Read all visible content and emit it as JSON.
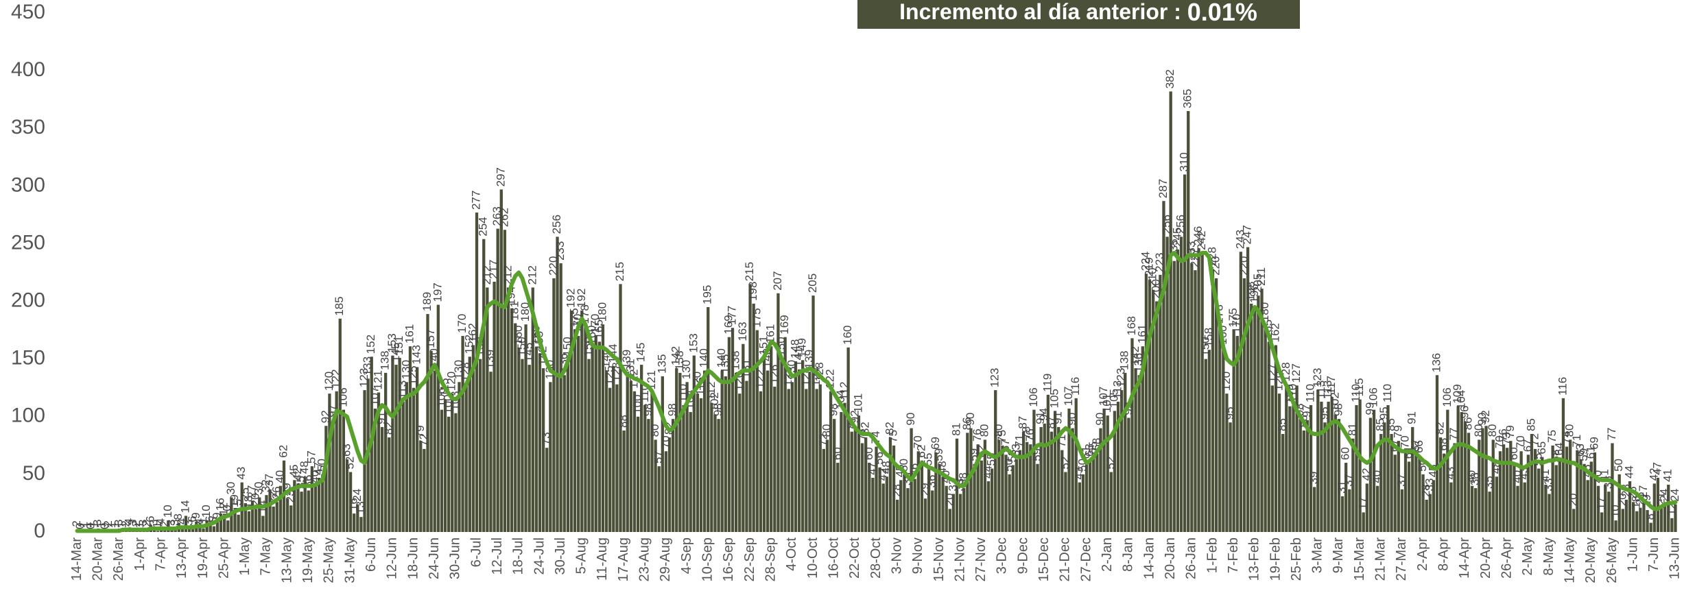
{
  "chart_data": {
    "type": "bar",
    "annotation": {
      "label": "Incremento al día anterior :",
      "value": "0.01%"
    },
    "ylim": [
      0,
      450
    ],
    "yticks": [
      0,
      50,
      100,
      150,
      200,
      250,
      300,
      350,
      400,
      450
    ],
    "grid": false,
    "color": "#4b5138",
    "categories": [
      "14-Mar",
      null,
      null,
      null,
      null,
      null,
      "20-Mar",
      null,
      null,
      null,
      null,
      null,
      "26-Mar",
      null,
      null,
      null,
      null,
      null,
      "1-Apr",
      null,
      null,
      null,
      null,
      null,
      "7-Apr",
      null,
      null,
      null,
      null,
      null,
      "13-Apr",
      null,
      null,
      null,
      null,
      null,
      "19-Apr",
      null,
      null,
      null,
      null,
      null,
      "25-Apr",
      null,
      null,
      null,
      null,
      null,
      "1-May",
      null,
      null,
      null,
      null,
      null,
      "7-May",
      null,
      null,
      null,
      null,
      null,
      "13-May",
      null,
      null,
      null,
      null,
      null,
      "19-May",
      null,
      null,
      null,
      null,
      null,
      "25-May",
      null,
      null,
      null,
      null,
      null,
      "31-May",
      null,
      null,
      null,
      null,
      null,
      "6-Jun",
      null,
      null,
      null,
      null,
      null,
      "12-Jun",
      null,
      null,
      null,
      null,
      null,
      "18-Jun",
      null,
      null,
      null,
      null,
      null,
      "24-Jun",
      null,
      null,
      null,
      null,
      null,
      "30-Jun",
      null,
      null,
      null,
      null,
      null,
      "6-Jul",
      null,
      null,
      null,
      null,
      null,
      "12-Jul",
      null,
      null,
      null,
      null,
      null,
      "18-Jul",
      null,
      null,
      null,
      null,
      null,
      "24-Jul",
      null,
      null,
      null,
      null,
      null,
      "30-Jul",
      null,
      null,
      null,
      null,
      null,
      "5-Aug",
      null,
      null,
      null,
      null,
      null,
      "11-Aug",
      null,
      null,
      null,
      null,
      null,
      "17-Aug",
      null,
      null,
      null,
      null,
      null,
      "23-Aug",
      null,
      null,
      null,
      null,
      null,
      "29-Aug",
      null,
      null,
      null,
      null,
      null,
      "4-Sep",
      null,
      null,
      null,
      null,
      null,
      "10-Sep",
      null,
      null,
      null,
      null,
      null,
      "16-Sep",
      null,
      null,
      null,
      null,
      null,
      "22-Sep",
      null,
      null,
      null,
      null,
      null,
      "28-Sep",
      null,
      null,
      null,
      null,
      null,
      "4-Oct",
      null,
      null,
      null,
      null,
      null,
      "10-Oct",
      null,
      null,
      null,
      null,
      null,
      "16-Oct",
      null,
      null,
      null,
      null,
      null,
      "22-Oct",
      null,
      null,
      null,
      null,
      null,
      "28-Oct",
      null,
      null,
      null,
      null,
      null,
      "3-Nov",
      null,
      null,
      null,
      null,
      null,
      "9-Nov",
      null,
      null,
      null,
      null,
      null,
      "15-Nov",
      null,
      null,
      null,
      null,
      null,
      "21-Nov",
      null,
      null,
      null,
      null,
      null,
      "27-Nov",
      null,
      null,
      null,
      null,
      null,
      "3-Dec",
      null,
      null,
      null,
      null,
      null,
      "9-Dec",
      null,
      null,
      null,
      null,
      null,
      "15-Dec",
      null,
      null,
      null,
      null,
      null,
      "21-Dec",
      null,
      null,
      null,
      null,
      null,
      "27-Dec",
      null,
      null,
      null,
      null,
      null,
      "2-Jan",
      null,
      null,
      null,
      null,
      null,
      "8-Jan",
      null,
      null,
      null,
      null,
      null,
      "14-Jan",
      null,
      null,
      null,
      null,
      null,
      "20-Jan",
      null,
      null,
      null,
      null,
      null,
      "26-Jan",
      null,
      null,
      null,
      null,
      null,
      "1-Feb",
      null,
      null,
      null,
      null,
      null,
      "7-Feb",
      null,
      null,
      null,
      null,
      null,
      "13-Feb",
      null,
      null,
      null,
      null,
      null,
      "19-Feb",
      null,
      null,
      null,
      null,
      null,
      "25-Feb",
      null,
      null,
      null,
      null,
      null,
      "3-Mar",
      null,
      null,
      null,
      null,
      null,
      "9-Mar",
      null,
      null,
      null,
      null,
      null,
      "15-Mar",
      null,
      null,
      null,
      null,
      null,
      "21-Mar",
      null,
      null,
      null,
      null,
      null,
      "27-Mar",
      null,
      null,
      null,
      null,
      null,
      "2-Apr",
      null,
      null,
      null,
      null,
      null,
      "8-Apr",
      null,
      null,
      null,
      null,
      null,
      "14-Apr",
      null,
      null,
      null,
      null,
      null,
      "20-Apr",
      null,
      null,
      null,
      null,
      null,
      "26-Apr",
      null,
      null,
      null,
      null,
      null,
      "2-May",
      null,
      null,
      null,
      null,
      null,
      "8-May",
      null,
      null,
      null,
      null,
      null,
      "14-May",
      null,
      null,
      null,
      null,
      null,
      "20-May",
      null,
      null,
      null,
      null,
      null,
      "26-May",
      null,
      null,
      null,
      null,
      null,
      "1-Jun",
      null,
      null,
      null,
      null,
      null,
      "7-Jun",
      null,
      null,
      null,
      null,
      null,
      "13-Jun"
    ],
    "values": [
      2,
      0,
      1,
      1,
      0,
      1,
      3,
      1,
      0,
      2,
      1,
      1,
      3,
      1,
      2,
      4,
      3,
      2,
      1,
      3,
      2,
      6,
      3,
      1,
      4,
      2,
      10,
      3,
      3,
      8,
      4,
      14,
      3,
      6,
      9,
      4,
      3,
      10,
      6,
      5,
      9,
      16,
      12,
      10,
      30,
      19,
      15,
      43,
      25,
      18,
      27,
      20,
      30,
      14,
      32,
      37,
      22,
      26,
      40,
      62,
      29,
      23,
      45,
      42,
      35,
      48,
      36,
      57,
      40,
      47,
      50,
      92,
      120,
      97,
      122,
      185,
      106,
      63,
      52,
      16,
      24,
      13,
      123,
      133,
      152,
      107,
      121,
      91,
      138,
      82,
      153,
      145,
      151,
      113,
      130,
      161,
      125,
      143,
      79,
      72,
      189,
      157,
      140,
      197,
      106,
      115,
      100,
      120,
      103,
      130,
      170,
      128,
      152,
      162,
      277,
      150,
      254,
      212,
      139,
      217,
      263,
      297,
      262,
      212,
      194,
      181,
      160,
      150,
      180,
      145,
      212,
      160,
      155,
      142,
      73,
      130,
      220,
      256,
      233,
      136,
      150,
      192,
      175,
      170,
      192,
      178,
      150,
      160,
      170,
      165,
      180,
      140,
      125,
      144,
      128,
      215,
      88,
      139,
      131,
      122,
      100,
      145,
      110,
      98,
      121,
      80,
      57,
      135,
      70,
      82,
      98,
      142,
      138,
      110,
      130,
      104,
      153,
      120,
      116,
      140,
      195,
      112,
      102,
      98,
      140,
      135,
      169,
      177,
      138,
      120,
      163,
      131,
      215,
      198,
      175,
      122,
      151,
      140,
      161,
      126,
      207,
      150,
      169,
      124,
      130,
      148,
      141,
      149,
      124,
      139,
      205,
      124,
      128,
      72,
      80,
      122,
      98,
      60,
      104,
      112,
      160,
      87,
      92,
      101,
      77,
      82,
      60,
      47,
      74,
      56,
      42,
      48,
      82,
      75,
      28,
      45,
      50,
      38,
      90,
      46,
      70,
      62,
      29,
      55,
      36,
      69,
      59,
      48,
      40,
      20,
      33,
      81,
      33,
      38,
      86,
      90,
      59,
      76,
      62,
      80,
      44,
      55,
      123,
      80,
      75,
      67,
      50,
      58,
      63,
      71,
      87,
      78,
      76,
      106,
      59,
      91,
      94,
      119,
      87,
      105,
      91,
      71,
      52,
      107,
      90,
      116,
      43,
      50,
      61,
      63,
      65,
      68,
      90,
      107,
      101,
      52,
      105,
      113,
      123,
      138,
      99,
      168,
      142,
      136,
      161,
      224,
      219,
      210,
      200,
      223,
      287,
      256,
      382,
      235,
      245,
      256,
      310,
      365,
      233,
      227,
      246,
      242,
      150,
      158,
      228,
      220,
      178,
      160,
      120,
      95,
      175,
      170,
      243,
      220,
      247,
      198,
      196,
      205,
      211,
      180,
      165,
      127,
      162,
      120,
      85,
      128,
      109,
      110,
      127,
      98,
      88,
      97,
      110,
      39,
      123,
      113,
      95,
      113,
      117,
      102,
      98,
      31,
      60,
      37,
      81,
      110,
      115,
      17,
      42,
      99,
      106,
      40,
      85,
      95,
      110,
      85,
      67,
      79,
      37,
      70,
      61,
      91,
      67,
      66,
      50,
      28,
      33,
      45,
      136,
      82,
      68,
      106,
      43,
      77,
      109,
      104,
      96,
      86,
      40,
      38,
      80,
      90,
      92,
      35,
      80,
      48,
      70,
      76,
      73,
      79,
      60,
      40,
      70,
      43,
      67,
      85,
      72,
      55,
      65,
      41,
      33,
      75,
      58,
      64,
      116,
      74,
      80,
      20,
      71,
      63,
      59,
      45,
      61,
      69,
      40,
      17,
      41,
      35,
      77,
      10,
      50,
      20,
      28,
      44,
      26,
      18,
      21,
      27,
      19,
      8,
      42,
      47,
      21,
      24,
      41,
      12,
      24
    ],
    "trend": {
      "color": "#5aa02c",
      "values": [
        1,
        1,
        1,
        1,
        1,
        1,
        1,
        1,
        1,
        1,
        1,
        1,
        1,
        2,
        2,
        2,
        2,
        2,
        2,
        2,
        2,
        3,
        3,
        3,
        3,
        3,
        3,
        3,
        3,
        4,
        4,
        4,
        4,
        4,
        5,
        5,
        5,
        6,
        7,
        8,
        10,
        12,
        13,
        14,
        16,
        18,
        19,
        20,
        20,
        21,
        21,
        22,
        22,
        22,
        23,
        24,
        26,
        28,
        30,
        33,
        35,
        37,
        38,
        39,
        40,
        40,
        40,
        40,
        41,
        43,
        45,
        60,
        80,
        95,
        105,
        104,
        102,
        100,
        90,
        80,
        70,
        62,
        60,
        70,
        80,
        95,
        105,
        110,
        108,
        103,
        100,
        105,
        110,
        115,
        117,
        119,
        120,
        123,
        127,
        130,
        135,
        140,
        145,
        138,
        130,
        125,
        120,
        116,
        115,
        118,
        122,
        128,
        135,
        142,
        150,
        165,
        180,
        195,
        198,
        200,
        198,
        196,
        195,
        205,
        215,
        222,
        225,
        220,
        210,
        200,
        190,
        178,
        165,
        155,
        147,
        140,
        138,
        136,
        135,
        140,
        148,
        158,
        168,
        178,
        185,
        180,
        170,
        162,
        160,
        160,
        160,
        158,
        155,
        152,
        150,
        145,
        140,
        136,
        135,
        133,
        132,
        130,
        128,
        126,
        122,
        115,
        108,
        100,
        92,
        88,
        90,
        95,
        100,
        106,
        112,
        118,
        122,
        126,
        130,
        135,
        140,
        138,
        135,
        132,
        130,
        130,
        130,
        132,
        135,
        138,
        140,
        140,
        140,
        142,
        145,
        148,
        152,
        158,
        165,
        163,
        158,
        150,
        145,
        140,
        135,
        136,
        138,
        140,
        140,
        142,
        140,
        138,
        135,
        132,
        130,
        125,
        120,
        115,
        110,
        105,
        100,
        95,
        90,
        87,
        85,
        85,
        85,
        82,
        78,
        74,
        70,
        67,
        65,
        60,
        57,
        55,
        52,
        48,
        45,
        50,
        55,
        60,
        58,
        56,
        55,
        53,
        52,
        50,
        48,
        46,
        45,
        42,
        40,
        40,
        45,
        50,
        55,
        62,
        68,
        70,
        68,
        66,
        65,
        67,
        70,
        72,
        70,
        67,
        65,
        65,
        65,
        66,
        68,
        72,
        75,
        76,
        75,
        76,
        78,
        80,
        83,
        87,
        90,
        88,
        84,
        80,
        72,
        65,
        60,
        62,
        65,
        70,
        74,
        78,
        80,
        83,
        88,
        95,
        100,
        105,
        110,
        118,
        125,
        130,
        140,
        155,
        170,
        180,
        190,
        200,
        210,
        225,
        240,
        242,
        238,
        235,
        236,
        240,
        240,
        240,
        240,
        242,
        242,
        238,
        215,
        200,
        180,
        160,
        150,
        147,
        145,
        150,
        160,
        170,
        180,
        188,
        195,
        192,
        185,
        178,
        170,
        160,
        150,
        140,
        133,
        127,
        120,
        112,
        105,
        100,
        95,
        90,
        86,
        85,
        85,
        86,
        88,
        92,
        95,
        96,
        94,
        90,
        85,
        80,
        75,
        70,
        65,
        62,
        60,
        62,
        68,
        75,
        78,
        80,
        80,
        77,
        74,
        72,
        70,
        70,
        70,
        70,
        68,
        65,
        62,
        60,
        57,
        55,
        55,
        58,
        62,
        66,
        70,
        74,
        76,
        76,
        75,
        74,
        72,
        70,
        68,
        66,
        65,
        64,
        62,
        61,
        60,
        60,
        60,
        60,
        59,
        58,
        56,
        56,
        58,
        60,
        61,
        61,
        60,
        61,
        62,
        62,
        63,
        63,
        62,
        61,
        60,
        60,
        58,
        56,
        55,
        52,
        50,
        48,
        46,
        45,
        45,
        45,
        44,
        42,
        40,
        38,
        37,
        36,
        35,
        33,
        30,
        27,
        25,
        22,
        20,
        20,
        22,
        24,
        25,
        25,
        26
      ]
    }
  }
}
